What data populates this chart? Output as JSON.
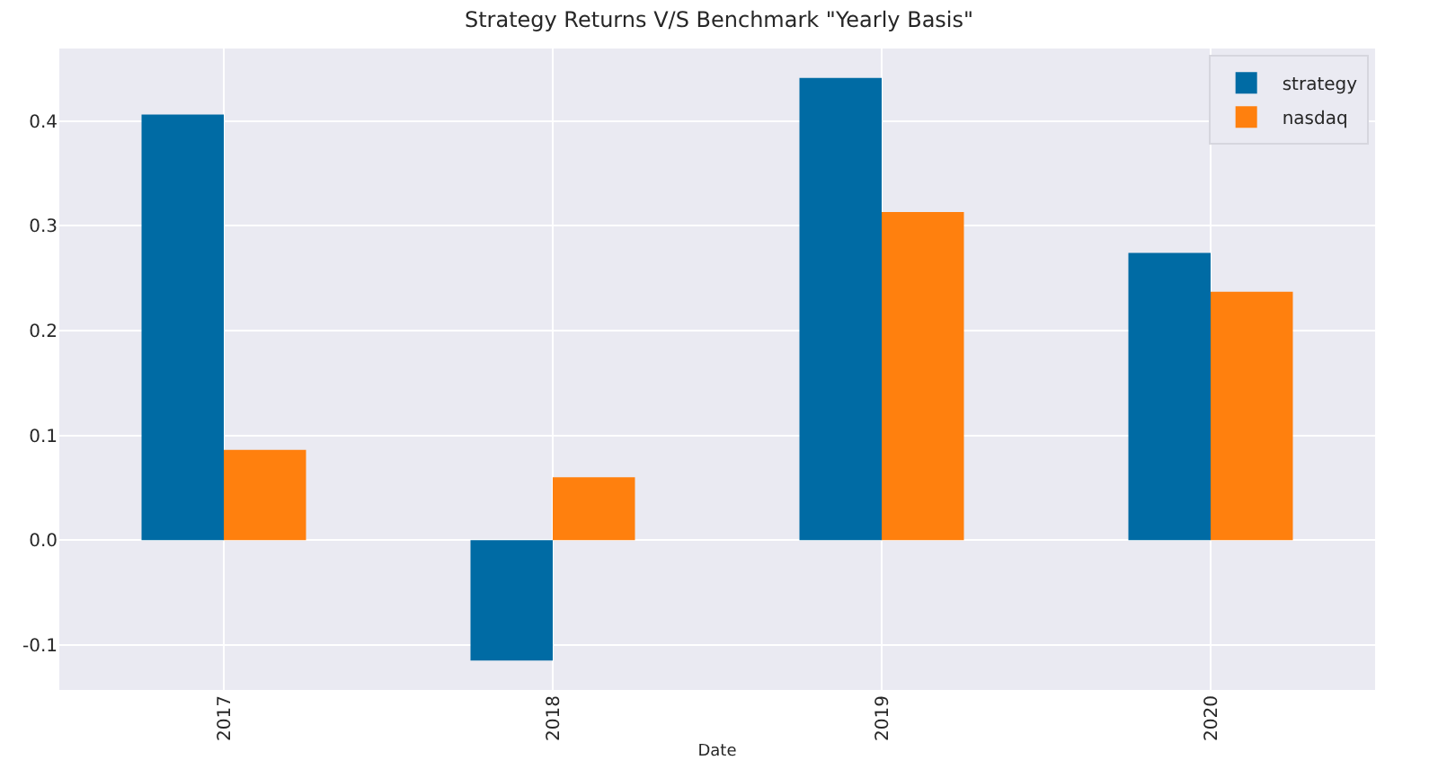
{
  "chart_data": {
    "type": "bar",
    "title": "Strategy Returns V/S Benchmark \"Yearly Basis\"",
    "xlabel": "Date",
    "categories": [
      "2017",
      "2018",
      "2019",
      "2020"
    ],
    "series": [
      {
        "name": "strategy",
        "color": "#006ba4",
        "values": [
          0.406,
          -0.115,
          0.441,
          0.274
        ]
      },
      {
        "name": "nasdaq",
        "color": "#ff800e",
        "values": [
          0.086,
          0.06,
          0.313,
          0.237
        ]
      }
    ],
    "ylim": [
      -0.143,
      0.469
    ],
    "yticks": [
      -0.1,
      {
        "value": 0,
        "label": "0.0"
      },
      0.1,
      0.2,
      0.3,
      0.4
    ],
    "grid": true,
    "legend": "top right"
  }
}
